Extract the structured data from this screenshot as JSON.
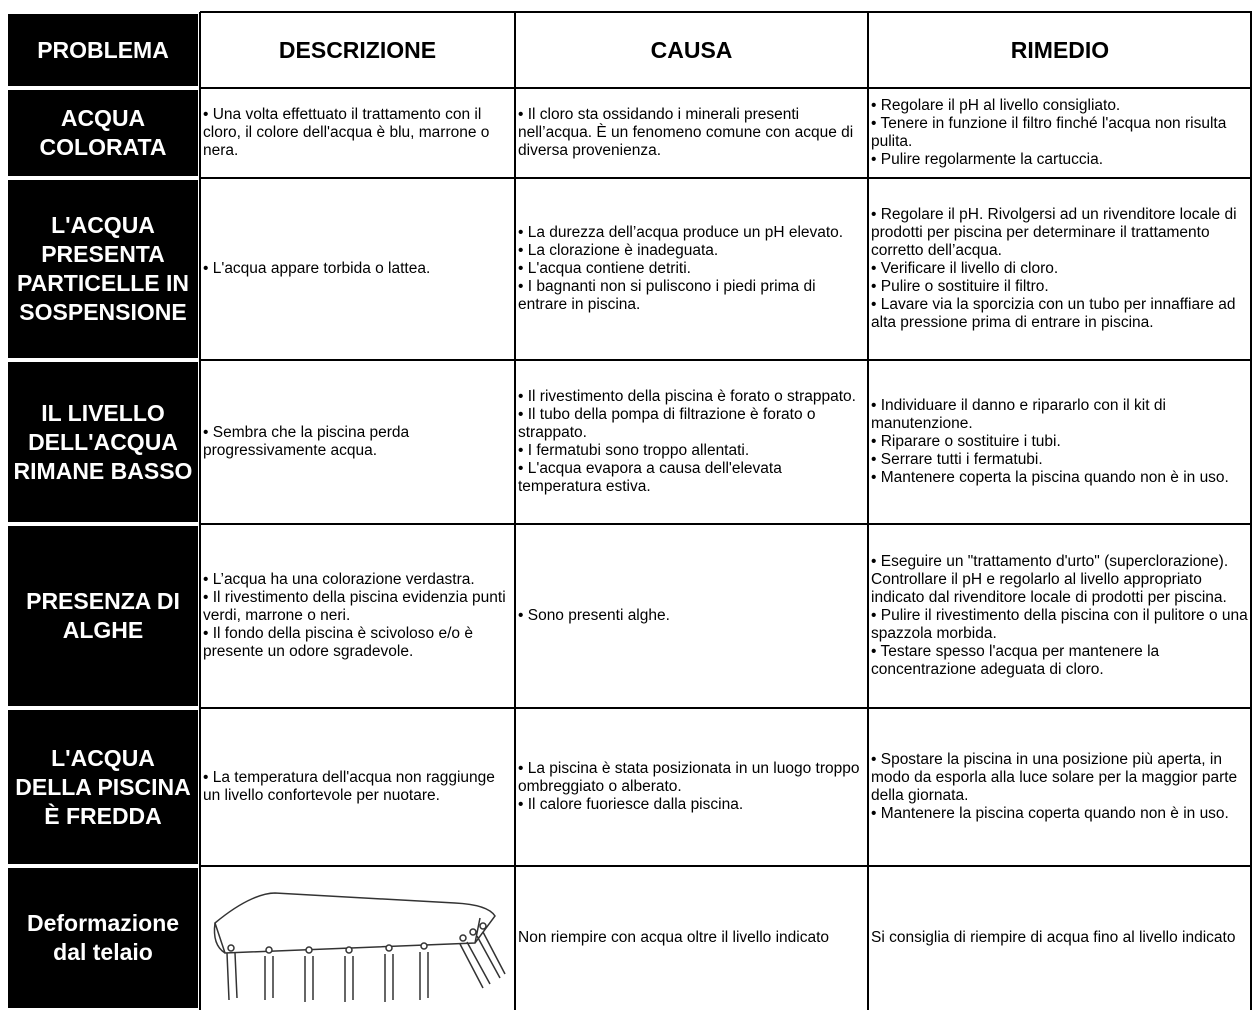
{
  "header": {
    "columns": [
      "PROBLEMA",
      "DESCRIZIONE",
      "CAUSA",
      "RIMEDIO"
    ]
  },
  "rows": [
    {
      "problem": "ACQUA COLORATA",
      "description": [
        "• Una volta effettuato il trattamento con il cloro, il colore dell'acqua è blu, marrone o nera."
      ],
      "cause": [
        "• Il cloro sta ossidando i minerali presenti nell’acqua. È un fenomeno comune con acque di diversa provenienza."
      ],
      "remedy": [
        "• Regolare il pH al livello consigliato.",
        "• Tenere in funzione il filtro finché l'acqua non risulta pulita.",
        "• Pulire regolarmente la cartuccia."
      ]
    },
    {
      "problem": "L'ACQUA PRESENTA PARTICELLE IN SOSPENSIONE",
      "description": [
        "• L'acqua appare torbida o lattea."
      ],
      "cause": [
        "• La durezza dell’acqua produce un pH elevato.",
        "• La clorazione è inadeguata.",
        "• L'acqua contiene detriti.",
        "• I bagnanti non si puliscono i piedi prima di entrare in piscina."
      ],
      "remedy": [
        "• Regolare il pH. Rivolgersi ad un rivenditore locale di prodotti per piscina per determinare il trattamento corretto dell’acqua.",
        "• Verificare il livello di cloro.",
        "• Pulire o sostituire il filtro.",
        "• Lavare via la sporcizia con un tubo per innaffiare ad alta pressione prima di entrare in piscina."
      ]
    },
    {
      "problem": "IL LIVELLO DELL'ACQUA RIMANE BASSO",
      "description": [
        "• Sembra che la piscina perda progressivamente acqua."
      ],
      "cause": [
        "• Il rivestimento della piscina è forato o strappato.",
        "• Il tubo della pompa di filtrazione è forato o strappato.",
        "• I fermatubi sono troppo allentati.",
        "• L'acqua evapora a causa dell'elevata temperatura estiva."
      ],
      "remedy": [
        "• Individuare il danno e ripararlo con il kit di manutenzione.",
        "• Riparare o sostituire i tubi.",
        "• Serrare tutti i fermatubi.",
        "• Mantenere coperta la piscina quando non è in uso."
      ]
    },
    {
      "problem": "PRESENZA DI ALGHE",
      "description": [
        "• L’acqua ha una colorazione verdastra.",
        "• Il rivestimento della piscina evidenzia punti verdi, marrone o neri.",
        "• Il fondo della piscina è scivoloso e/o è presente un odore sgradevole."
      ],
      "cause": [
        "• Sono presenti alghe."
      ],
      "remedy": [
        "• Eseguire un \"trattamento d'urto\" (superclorazione). Controllare il pH e regolarlo al livello appropriato indicato dal rivenditore locale di prodotti per piscina.",
        "• Pulire il rivestimento della piscina con il pulitore o una spazzola morbida.",
        "• Testare spesso l'acqua per mantenere la concentrazione adeguata di cloro."
      ]
    },
    {
      "problem": "L'ACQUA DELLA PISCINA È FREDDA",
      "description": [
        "• La temperatura dell'acqua non raggiunge un livello confortevole per nuotare."
      ],
      "cause": [
        "• La piscina è stata posizionata in un luogo troppo ombreggiato o alberato.",
        "• Il calore fuoriesce dalla piscina."
      ],
      "remedy": [
        "• Spostare la piscina in una posizione più aperta, in modo da esporla alla luce solare per la maggior parte della giornata.",
        "• Mantenere la piscina coperta quando non è in uso."
      ]
    },
    {
      "problem": "Deformazione dal telaio",
      "description": [],
      "cause": [
        "Non riempire con acqua oltre il livello indicato"
      ],
      "remedy": [
        "Si consiglia di riempire di acqua fino al livello indicato"
      ]
    }
  ]
}
